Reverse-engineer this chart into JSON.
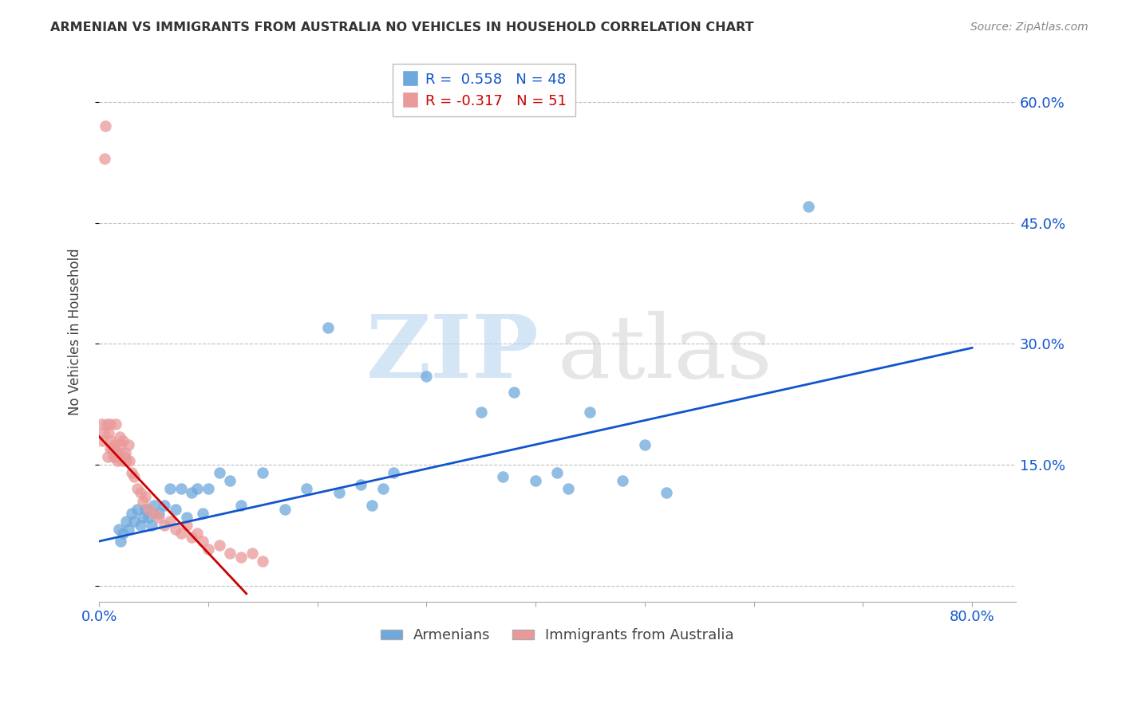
{
  "title": "ARMENIAN VS IMMIGRANTS FROM AUSTRALIA NO VEHICLES IN HOUSEHOLD CORRELATION CHART",
  "source": "Source: ZipAtlas.com",
  "ylabel": "No Vehicles in Household",
  "xlim": [
    0.0,
    0.84
  ],
  "ylim": [
    -0.02,
    0.65
  ],
  "x_ticks": [
    0.0,
    0.1,
    0.2,
    0.3,
    0.4,
    0.5,
    0.6,
    0.7,
    0.8
  ],
  "y_ticks": [
    0.0,
    0.15,
    0.3,
    0.45,
    0.6
  ],
  "x_tick_labels_show": [
    "0.0%",
    "80.0%"
  ],
  "y_tick_labels_show": [
    "15.0%",
    "30.0%",
    "45.0%",
    "60.0%"
  ],
  "blue_R": 0.558,
  "blue_N": 48,
  "pink_R": -0.317,
  "pink_N": 51,
  "blue_color": "#6fa8dc",
  "pink_color": "#ea9999",
  "blue_line_color": "#1155cc",
  "pink_line_color": "#cc0000",
  "legend_label_blue": "Armenians",
  "legend_label_pink": "Immigrants from Australia",
  "blue_line_x0": 0.0,
  "blue_line_y0": 0.055,
  "blue_line_x1": 0.8,
  "blue_line_y1": 0.295,
  "pink_line_x0": 0.0,
  "pink_line_y0": 0.185,
  "pink_line_x1": 0.135,
  "pink_line_y1": -0.01,
  "blue_scatter_x": [
    0.018,
    0.02,
    0.022,
    0.025,
    0.027,
    0.03,
    0.032,
    0.035,
    0.038,
    0.04,
    0.042,
    0.045,
    0.048,
    0.05,
    0.055,
    0.06,
    0.065,
    0.07,
    0.075,
    0.08,
    0.085,
    0.09,
    0.095,
    0.1,
    0.11,
    0.12,
    0.13,
    0.15,
    0.17,
    0.19,
    0.21,
    0.22,
    0.24,
    0.25,
    0.26,
    0.27,
    0.3,
    0.35,
    0.37,
    0.38,
    0.4,
    0.42,
    0.43,
    0.45,
    0.48,
    0.5,
    0.52,
    0.65
  ],
  "blue_scatter_y": [
    0.07,
    0.055,
    0.065,
    0.08,
    0.07,
    0.09,
    0.08,
    0.095,
    0.075,
    0.085,
    0.095,
    0.085,
    0.075,
    0.1,
    0.09,
    0.1,
    0.12,
    0.095,
    0.12,
    0.085,
    0.115,
    0.12,
    0.09,
    0.12,
    0.14,
    0.13,
    0.1,
    0.14,
    0.095,
    0.12,
    0.32,
    0.115,
    0.125,
    0.1,
    0.12,
    0.14,
    0.26,
    0.215,
    0.135,
    0.24,
    0.13,
    0.14,
    0.12,
    0.215,
    0.13,
    0.175,
    0.115,
    0.47
  ],
  "pink_scatter_x": [
    0.002,
    0.003,
    0.004,
    0.005,
    0.006,
    0.007,
    0.008,
    0.009,
    0.01,
    0.01,
    0.011,
    0.012,
    0.013,
    0.014,
    0.015,
    0.015,
    0.016,
    0.017,
    0.018,
    0.019,
    0.02,
    0.021,
    0.022,
    0.023,
    0.024,
    0.025,
    0.027,
    0.028,
    0.03,
    0.032,
    0.035,
    0.038,
    0.04,
    0.042,
    0.045,
    0.05,
    0.055,
    0.06,
    0.065,
    0.07,
    0.075,
    0.08,
    0.085,
    0.09,
    0.095,
    0.1,
    0.11,
    0.12,
    0.13,
    0.14,
    0.15
  ],
  "pink_scatter_y": [
    0.2,
    0.18,
    0.19,
    0.53,
    0.57,
    0.2,
    0.16,
    0.19,
    0.17,
    0.2,
    0.18,
    0.17,
    0.16,
    0.175,
    0.16,
    0.2,
    0.165,
    0.155,
    0.165,
    0.185,
    0.175,
    0.155,
    0.18,
    0.16,
    0.165,
    0.155,
    0.175,
    0.155,
    0.14,
    0.135,
    0.12,
    0.115,
    0.105,
    0.11,
    0.095,
    0.09,
    0.085,
    0.075,
    0.08,
    0.07,
    0.065,
    0.075,
    0.06,
    0.065,
    0.055,
    0.045,
    0.05,
    0.04,
    0.035,
    0.04,
    0.03
  ]
}
